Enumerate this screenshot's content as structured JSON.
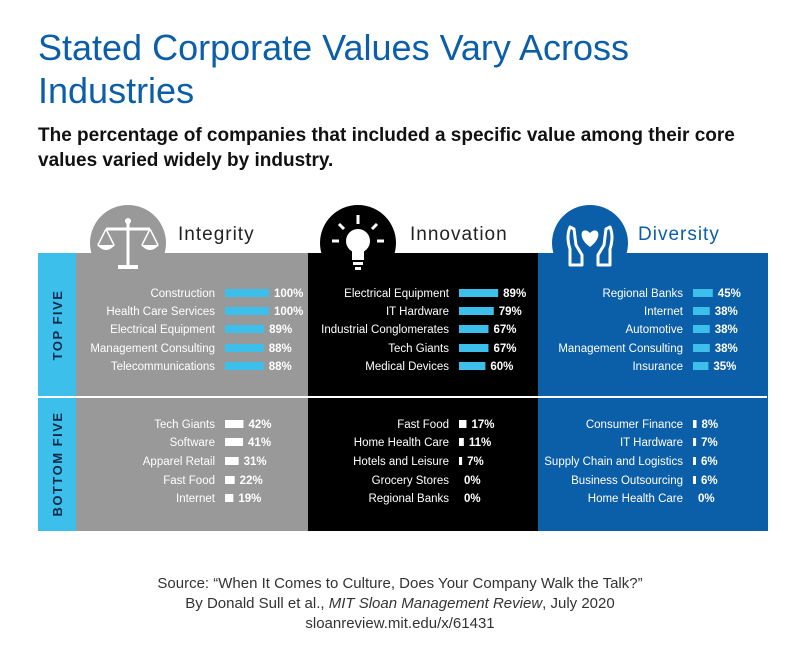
{
  "title": "Stated Corporate Values Vary Across Industries",
  "subtitle": "The percentage of companies that included a specific value among their core values varied widely by industry.",
  "source": {
    "line1": "Source: “When It Comes to Culture, Does Your Company Walk the Talk?”",
    "line2_prefix": "By Donald Sull et al., ",
    "line2_italic": "MIT Sloan Management Review",
    "line2_suffix": ", July 2020",
    "line3": "sloanreview.mit.edu/x/61431"
  },
  "icons": [
    "scales-icon",
    "lightbulb-icon",
    "hands-heart-icon"
  ],
  "colors": {
    "integrity_panel": "#999999",
    "innovation_panel": "#000000",
    "diversity_panel": "#0b5ea8",
    "bar": "#3cc0eb",
    "side_label_bg": "#3cc0eb",
    "bar_bottom": "#ffffff"
  },
  "chart_data": {
    "type": "bar",
    "orientation": "horizontal",
    "unit": "%",
    "row_groups": [
      "TOP FIVE",
      "BOTTOM FIVE"
    ],
    "panels": [
      {
        "value": "Integrity",
        "top_five": [
          {
            "industry": "Construction",
            "value": 100
          },
          {
            "industry": "Health Care Services",
            "value": 100
          },
          {
            "industry": "Electrical Equipment",
            "value": 89
          },
          {
            "industry": "Management Consulting",
            "value": 88
          },
          {
            "industry": "Telecommunications",
            "value": 88
          }
        ],
        "bottom_five": [
          {
            "industry": "Tech Giants",
            "value": 42
          },
          {
            "industry": "Software",
            "value": 41
          },
          {
            "industry": "Apparel Retail",
            "value": 31
          },
          {
            "industry": "Fast Food",
            "value": 22
          },
          {
            "industry": "Internet",
            "value": 19
          }
        ]
      },
      {
        "value": "Innovation",
        "top_five": [
          {
            "industry": "Electrical Equipment",
            "value": 89
          },
          {
            "industry": "IT Hardware",
            "value": 79
          },
          {
            "industry": "Industrial Conglomerates",
            "value": 67
          },
          {
            "industry": "Tech Giants",
            "value": 67
          },
          {
            "industry": "Medical Devices",
            "value": 60
          }
        ],
        "bottom_five": [
          {
            "industry": "Fast Food",
            "value": 17
          },
          {
            "industry": "Home Health Care",
            "value": 11
          },
          {
            "industry": "Hotels and Leisure",
            "value": 7
          },
          {
            "industry": "Grocery Stores",
            "value": 0
          },
          {
            "industry": "Regional Banks",
            "value": 0
          }
        ]
      },
      {
        "value": "Diversity",
        "top_five": [
          {
            "industry": "Regional Banks",
            "value": 45
          },
          {
            "industry": "Internet",
            "value": 38
          },
          {
            "industry": "Automotive",
            "value": 38
          },
          {
            "industry": "Management Consulting",
            "value": 38
          },
          {
            "industry": "Insurance",
            "value": 35
          }
        ],
        "bottom_five": [
          {
            "industry": "Consumer Finance",
            "value": 8
          },
          {
            "industry": "IT Hardware",
            "value": 7
          },
          {
            "industry": "Supply Chain and Logistics",
            "value": 6
          },
          {
            "industry": "Business Outsourcing",
            "value": 6
          },
          {
            "industry": "Home Health Care",
            "value": 0
          }
        ]
      }
    ]
  }
}
